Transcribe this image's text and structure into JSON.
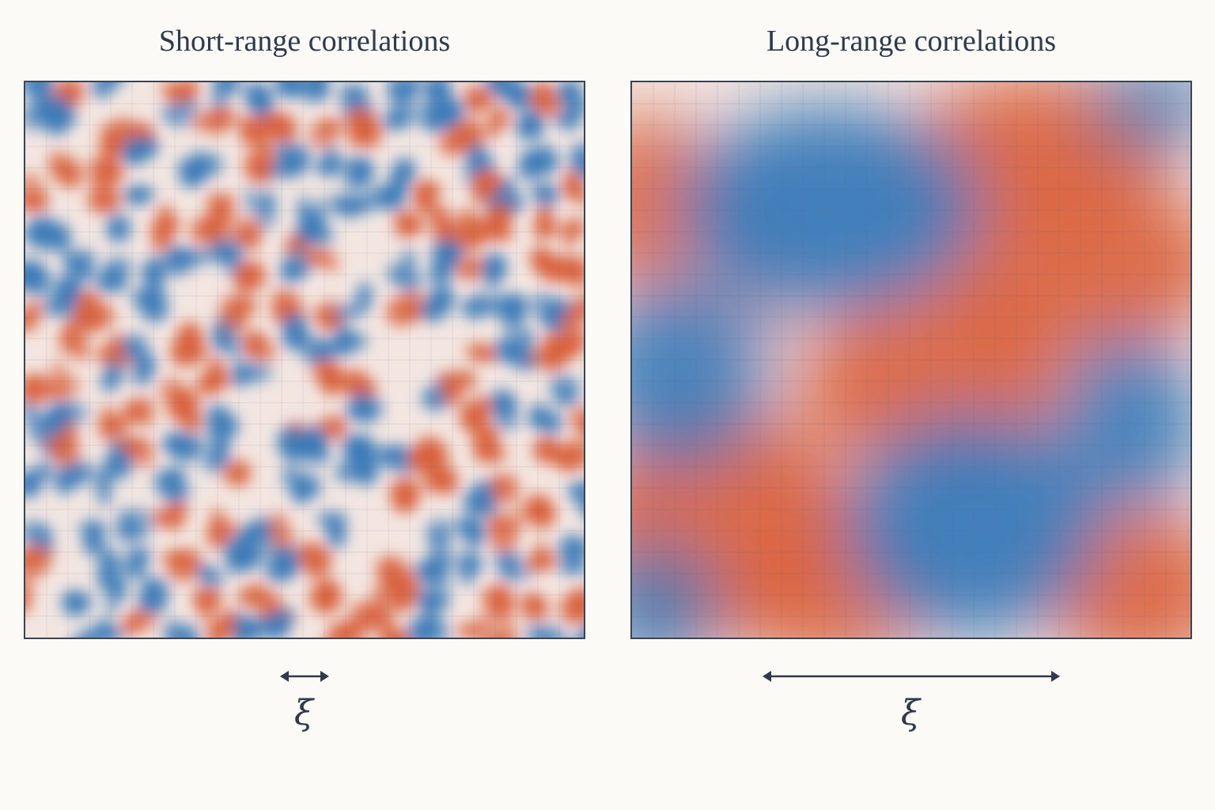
{
  "panels": {
    "left": {
      "title": "Short-range correlations",
      "length_label": "ξ"
    },
    "right": {
      "title": "Long-range correlations",
      "length_label": "ξ"
    }
  },
  "colors": {
    "positive": "#d9603b",
    "negative": "#3a7ab8",
    "neutral": "#f3e6e1",
    "frame": "#3b4454",
    "background": "#fbfaf6"
  }
}
